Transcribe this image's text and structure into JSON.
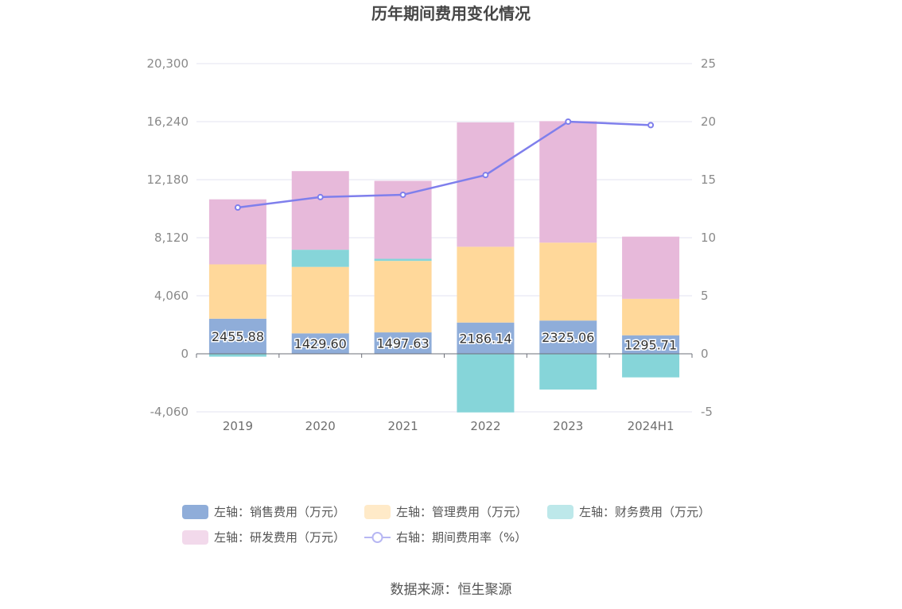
{
  "chart_data": {
    "type": "bar",
    "title": "历年期间费用变化情况",
    "categories": [
      "2019",
      "2020",
      "2021",
      "2022",
      "2023",
      "2024H1"
    ],
    "left_axis": {
      "ylim": [
        -4060,
        20300
      ],
      "ticks": [
        -4060,
        0,
        4060,
        8120,
        12180,
        16240,
        20300
      ],
      "tick_labels": [
        "-4,060",
        "0",
        "4,060",
        "8,120",
        "12,180",
        "16,240",
        "20,300"
      ]
    },
    "right_axis": {
      "ylim": [
        -5,
        25
      ],
      "ticks": [
        -5,
        0,
        5,
        10,
        15,
        20,
        25
      ],
      "tick_labels": [
        "-5",
        "0",
        "5",
        "10",
        "15",
        "20",
        "25"
      ]
    },
    "series": [
      {
        "name": "左轴：销售费用（万元）",
        "type": "bar",
        "color": "#8fadd9",
        "values": [
          2455.88,
          1429.6,
          1497.63,
          2186.14,
          2325.06,
          1295.71
        ],
        "data_labels": [
          "2455.88",
          "1429.60",
          "1497.63",
          "2186.14",
          "2325.06",
          "1295.71"
        ]
      },
      {
        "name": "左轴：管理费用（万元）",
        "type": "bar",
        "color": "#ffd89a",
        "values": [
          3800,
          4650,
          5000,
          5300,
          5450,
          2550
        ]
      },
      {
        "name": "左轴：财务费用（万元）",
        "type": "bar",
        "color": "#86d5d9",
        "values": [
          -200,
          1200,
          150,
          -4100,
          -2500,
          -1650
        ]
      },
      {
        "name": "左轴：研发费用（万元）",
        "type": "bar",
        "color": "#e7b9da",
        "values": [
          4550,
          5500,
          5450,
          8700,
          8500,
          4350
        ]
      },
      {
        "name": "右轴：期间费用率（%）",
        "type": "line",
        "color": "#7f7fec",
        "axis": "right",
        "values": [
          12.6,
          13.5,
          13.7,
          15.4,
          20.0,
          19.7
        ]
      }
    ],
    "legend_position": "bottom"
  },
  "source": "数据来源：恒生聚源"
}
